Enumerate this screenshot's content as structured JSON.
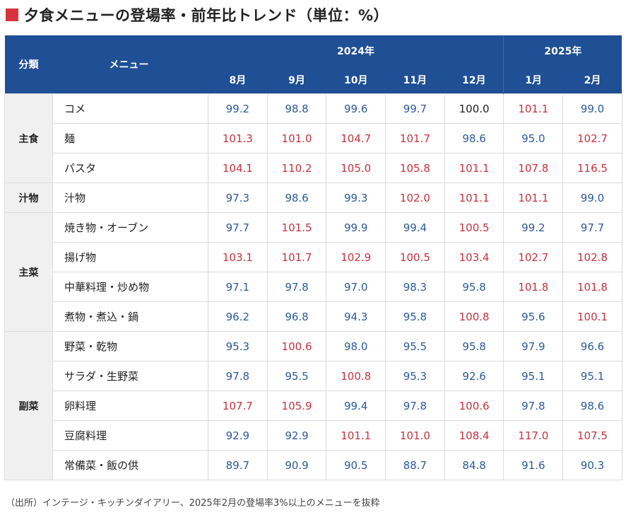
{
  "title": "夕食メニューの登場率・前年比トレンド（単位：%）",
  "header": {
    "category_label": "分類",
    "menu_label": "メニュー",
    "years": [
      {
        "label": "2024年"
      },
      {
        "label": "2025年"
      }
    ],
    "months": [
      "8月",
      "9月",
      "10月",
      "11月",
      "12月",
      "1月",
      "2月"
    ]
  },
  "colors": {
    "header_bg": "#1f4f94",
    "up": "#c8323e",
    "down": "#2c5a9c",
    "title_mark": "#d9333f"
  },
  "groups": [
    {
      "category": "主食",
      "rows": [
        {
          "menu": "コメ",
          "values": [
            "99.2",
            "98.8",
            "99.6",
            "99.7",
            "100.0",
            "101.1",
            "99.0"
          ]
        },
        {
          "menu": "麺",
          "values": [
            "101.3",
            "101.0",
            "104.7",
            "101.7",
            "98.6",
            "95.0",
            "102.7"
          ]
        },
        {
          "menu": "パスタ",
          "values": [
            "104.1",
            "110.2",
            "105.0",
            "105.8",
            "101.1",
            "107.8",
            "116.5"
          ]
        }
      ]
    },
    {
      "category": "汁物",
      "rows": [
        {
          "menu": "汁物",
          "values": [
            "97.3",
            "98.6",
            "99.3",
            "102.0",
            "101.1",
            "101.1",
            "99.0"
          ]
        }
      ]
    },
    {
      "category": "主菜",
      "rows": [
        {
          "menu": "焼き物・オーブン",
          "values": [
            "97.7",
            "101.5",
            "99.9",
            "99.4",
            "100.5",
            "99.2",
            "97.7"
          ]
        },
        {
          "menu": "揚げ物",
          "values": [
            "103.1",
            "101.7",
            "102.9",
            "100.5",
            "103.4",
            "102.7",
            "102.8"
          ]
        },
        {
          "menu": "中華料理・炒め物",
          "values": [
            "97.1",
            "97.8",
            "97.0",
            "98.3",
            "95.8",
            "101.8",
            "101.8"
          ]
        },
        {
          "menu": "煮物・煮込・鍋",
          "values": [
            "96.2",
            "96.8",
            "94.3",
            "95.8",
            "100.8",
            "95.6",
            "100.1"
          ]
        }
      ]
    },
    {
      "category": "副菜",
      "rows": [
        {
          "menu": "野菜・乾物",
          "values": [
            "95.3",
            "100.6",
            "98.0",
            "95.5",
            "95.8",
            "97.9",
            "96.6"
          ]
        },
        {
          "menu": "サラダ・生野菜",
          "values": [
            "97.8",
            "95.5",
            "100.8",
            "95.3",
            "92.6",
            "95.1",
            "95.1"
          ]
        },
        {
          "menu": "卵料理",
          "values": [
            "107.7",
            "105.9",
            "99.4",
            "97.8",
            "100.6",
            "97.8",
            "98.6"
          ]
        },
        {
          "menu": "豆腐料理",
          "values": [
            "92.9",
            "92.9",
            "101.1",
            "101.0",
            "108.4",
            "117.0",
            "107.5"
          ]
        },
        {
          "menu": "常備菜・飯の供",
          "values": [
            "89.7",
            "90.9",
            "90.5",
            "88.7",
            "84.8",
            "91.6",
            "90.3"
          ]
        }
      ]
    }
  ],
  "footnote": "（出所）インテージ・キッチンダイアリー、2025年2月の登場率3%以上のメニューを抜粋"
}
